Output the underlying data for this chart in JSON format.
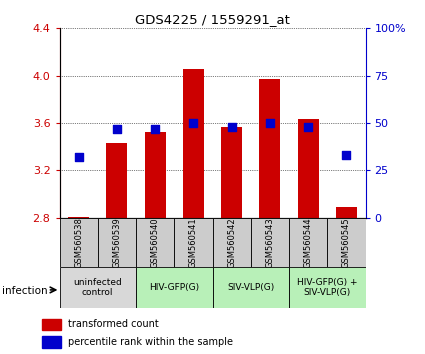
{
  "title": "GDS4225 / 1559291_at",
  "samples": [
    "GSM560538",
    "GSM560539",
    "GSM560540",
    "GSM560541",
    "GSM560542",
    "GSM560543",
    "GSM560544",
    "GSM560545"
  ],
  "transformed_counts": [
    2.81,
    3.43,
    3.52,
    4.06,
    3.57,
    3.97,
    3.63,
    2.89
  ],
  "percentile_ranks": [
    32,
    47,
    47,
    50,
    48,
    50,
    48,
    33
  ],
  "y_min": 2.8,
  "y_max": 4.4,
  "y_ticks": [
    2.8,
    3.2,
    3.6,
    4.0,
    4.4
  ],
  "right_y_ticks": [
    0,
    25,
    50,
    75,
    100
  ],
  "bar_color": "#cc0000",
  "dot_color": "#0000cc",
  "bar_width": 0.55,
  "dot_size": 28,
  "infection_groups": [
    {
      "label": "uninfected\ncontrol",
      "start": 0,
      "end": 2,
      "color": "#d8d8d8"
    },
    {
      "label": "HIV-GFP(G)",
      "start": 2,
      "end": 4,
      "color": "#b8f0b8"
    },
    {
      "label": "SIV-VLP(G)",
      "start": 4,
      "end": 6,
      "color": "#b8f0b8"
    },
    {
      "label": "HIV-GFP(G) +\nSIV-VLP(G)",
      "start": 6,
      "end": 8,
      "color": "#b8f0b8"
    }
  ],
  "legend_items": [
    {
      "color": "#cc0000",
      "label": "transformed count"
    },
    {
      "color": "#0000cc",
      "label": "percentile rank within the sample"
    }
  ],
  "infection_label": "infection",
  "right_axis_color": "#0000cc",
  "background_color": "#ffffff",
  "plot_bg_color": "#ffffff",
  "tick_label_color_left": "#cc0000",
  "tick_label_color_right": "#0000cc",
  "sample_box_color": "#cccccc",
  "grid_yticks": [
    3.2,
    3.6,
    4.0,
    4.4
  ]
}
